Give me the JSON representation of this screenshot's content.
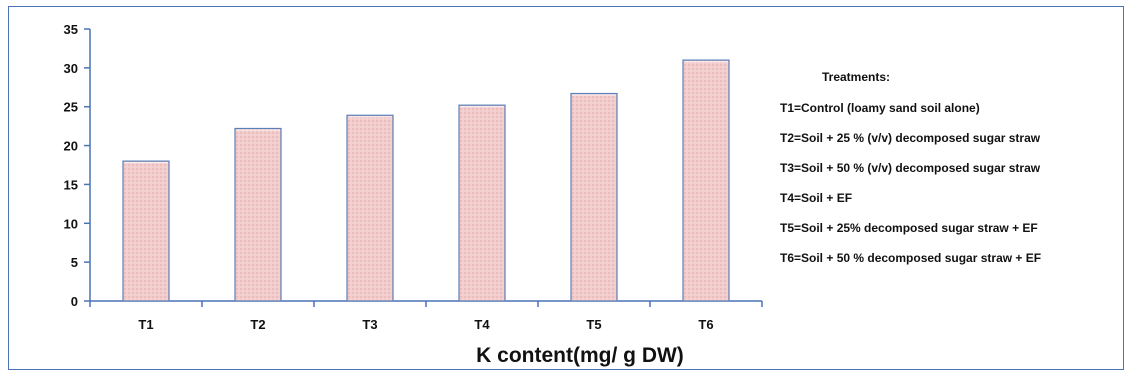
{
  "chart_data": {
    "type": "bar",
    "categories": [
      "T1",
      "T2",
      "T3",
      "T4",
      "T5",
      "T6"
    ],
    "values": [
      18,
      22.2,
      23.9,
      25.2,
      26.7,
      31
    ],
    "title": "",
    "xlabel": "K content(mg/ g DW)",
    "ylabel": "",
    "ylim": [
      0,
      35
    ],
    "yticks": [
      0,
      5,
      10,
      15,
      20,
      25,
      30,
      35
    ],
    "grid": false,
    "bar_fill": "#f2c9c9",
    "bar_edge": "#5b7fb8",
    "axis_color": "#4a74b5",
    "legend_placement": "right",
    "legend": {
      "title": "Treatments:",
      "items": [
        "T1=Control (loamy sand soil alone)",
        "T2=Soil + 25 % (v/v) decomposed sugar straw",
        "T3=Soil + 50 % (v/v) decomposed sugar straw",
        "T4=Soil + EF",
        "T5=Soil + 25% decomposed sugar straw + EF",
        "T6=Soil + 50 % decomposed sugar straw + EF"
      ]
    }
  }
}
